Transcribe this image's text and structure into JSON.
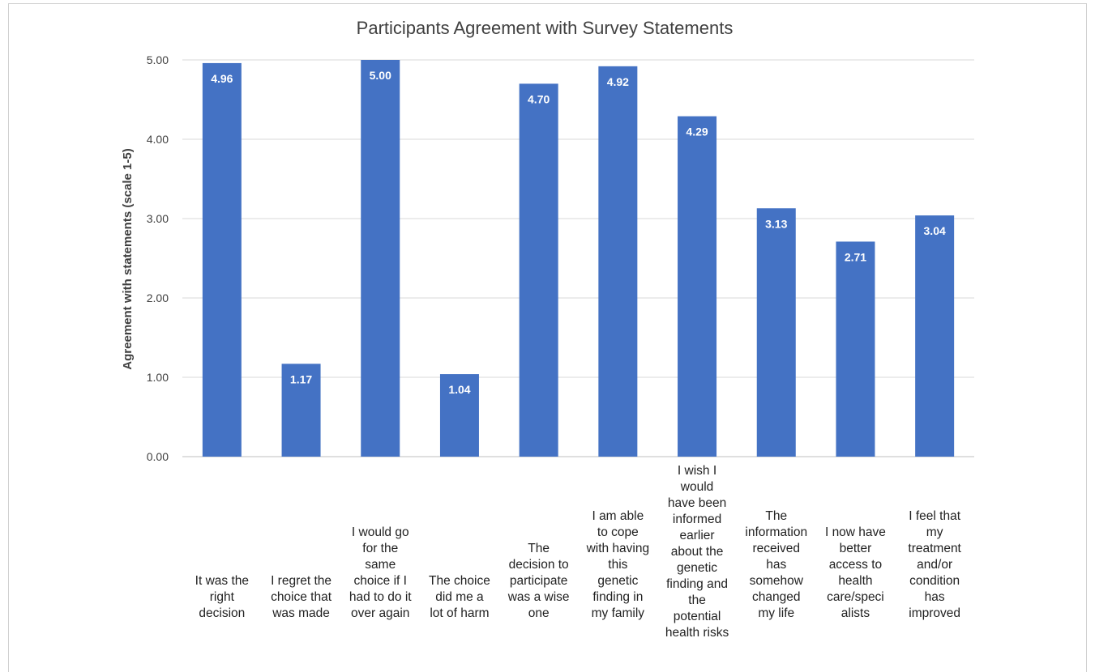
{
  "chart_data": {
    "type": "bar",
    "title": "Participants Agreement with Survey Statements",
    "xlabel": "",
    "ylabel": "Agreement with statements (scale 1-5)",
    "ylim": [
      0,
      5
    ],
    "yticks": [
      "0.00",
      "1.00",
      "2.00",
      "3.00",
      "4.00",
      "5.00"
    ],
    "grid": true,
    "bar_color": "#4472C4",
    "categories": [
      [
        "It was the",
        "right",
        "decision"
      ],
      [
        "I regret the",
        "choice that",
        "was made"
      ],
      [
        "I would go",
        "for the",
        "same",
        "choice if I",
        "had to do it",
        "over again"
      ],
      [
        "The choice",
        "did me a",
        "lot of harm"
      ],
      [
        "The",
        "decision to",
        "participate",
        "was a wise",
        "one"
      ],
      [
        "I am able",
        "to cope",
        "with having",
        "this",
        "genetic",
        "finding in",
        "my family"
      ],
      [
        "I wish I",
        "would",
        "have been",
        "informed",
        "earlier",
        "about the",
        "genetic",
        "finding and",
        "the",
        "potential",
        "health risks"
      ],
      [
        "The",
        "information",
        "received",
        "has",
        "somehow",
        "changed",
        "my life"
      ],
      [
        "I now have",
        "better",
        "access to",
        "health",
        "care/speci",
        "alists"
      ],
      [
        "I feel that",
        "my",
        "treatment",
        "and/or",
        "condition",
        "has",
        "improved"
      ]
    ],
    "values": [
      4.96,
      1.17,
      5.0,
      1.04,
      4.7,
      4.92,
      4.29,
      3.13,
      2.71,
      3.04
    ],
    "data_labels": [
      "4.96",
      "1.17",
      "5.00",
      "1.04",
      "4.70",
      "4.92",
      "4.29",
      "3.13",
      "2.71",
      "3.04"
    ]
  }
}
